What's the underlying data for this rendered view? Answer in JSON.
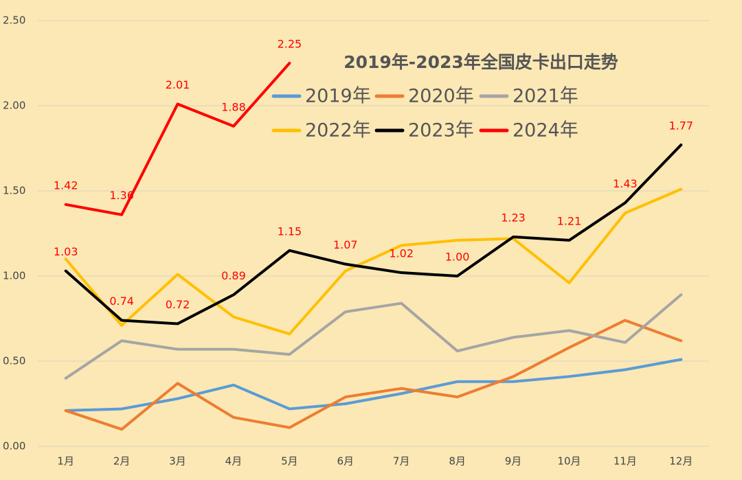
{
  "chart_data": {
    "type": "line",
    "title": "2019年-2023年全国皮卡出口走势",
    "categories": [
      "1月",
      "2月",
      "3月",
      "4月",
      "5月",
      "6月",
      "7月",
      "8月",
      "9月",
      "10月",
      "11月",
      "12月"
    ],
    "ylim": [
      0,
      2.5
    ],
    "yticks": [
      {
        "value": 0,
        "label": "0.00"
      },
      {
        "value": 0.5,
        "label": "0.50"
      },
      {
        "value": 1,
        "label": "1.00"
      },
      {
        "value": 1.5,
        "label": "1.50"
      },
      {
        "value": 2,
        "label": "2.00"
      },
      {
        "value": 2.5,
        "label": "2.50"
      }
    ],
    "grid": true,
    "series": [
      {
        "name": "2019年",
        "color": "#5b9bd5",
        "values": [
          0.21,
          0.22,
          0.28,
          0.36,
          0.22,
          0.25,
          0.31,
          0.38,
          0.38,
          0.41,
          0.45,
          0.51
        ]
      },
      {
        "name": "2020年",
        "color": "#ed7d31",
        "values": [
          0.21,
          0.1,
          0.37,
          0.17,
          0.11,
          0.29,
          0.34,
          0.29,
          0.41,
          0.58,
          0.74,
          0.62
        ]
      },
      {
        "name": "2021年",
        "color": "#a5a5a5",
        "values": [
          0.4,
          0.62,
          0.57,
          0.57,
          0.54,
          0.79,
          0.84,
          0.56,
          0.64,
          0.68,
          0.61,
          0.89
        ]
      },
      {
        "name": "2022年",
        "color": "#ffc000",
        "values": [
          1.1,
          0.71,
          1.01,
          0.76,
          0.66,
          1.03,
          1.18,
          1.21,
          1.22,
          0.96,
          1.37,
          1.51
        ]
      },
      {
        "name": "2023年",
        "color": "#000000",
        "values": [
          1.03,
          0.74,
          0.72,
          0.89,
          1.15,
          1.07,
          1.02,
          1.0,
          1.23,
          1.21,
          1.43,
          1.77
        ],
        "value_labels": [
          "1.03",
          "0.74",
          "0.72",
          "0.89",
          "1.15",
          "1.07",
          "1.02",
          "1.00",
          "1.23",
          "1.21",
          "1.43",
          "1.77"
        ]
      },
      {
        "name": "2024年",
        "color": "#ff0000",
        "values": [
          1.42,
          1.36,
          2.01,
          1.88,
          2.25,
          null,
          null,
          null,
          null,
          null,
          null,
          null
        ],
        "value_labels": [
          "1.42",
          "1.36",
          "2.01",
          "1.88",
          "2.25",
          null,
          null,
          null,
          null,
          null,
          null,
          null
        ]
      }
    ]
  }
}
